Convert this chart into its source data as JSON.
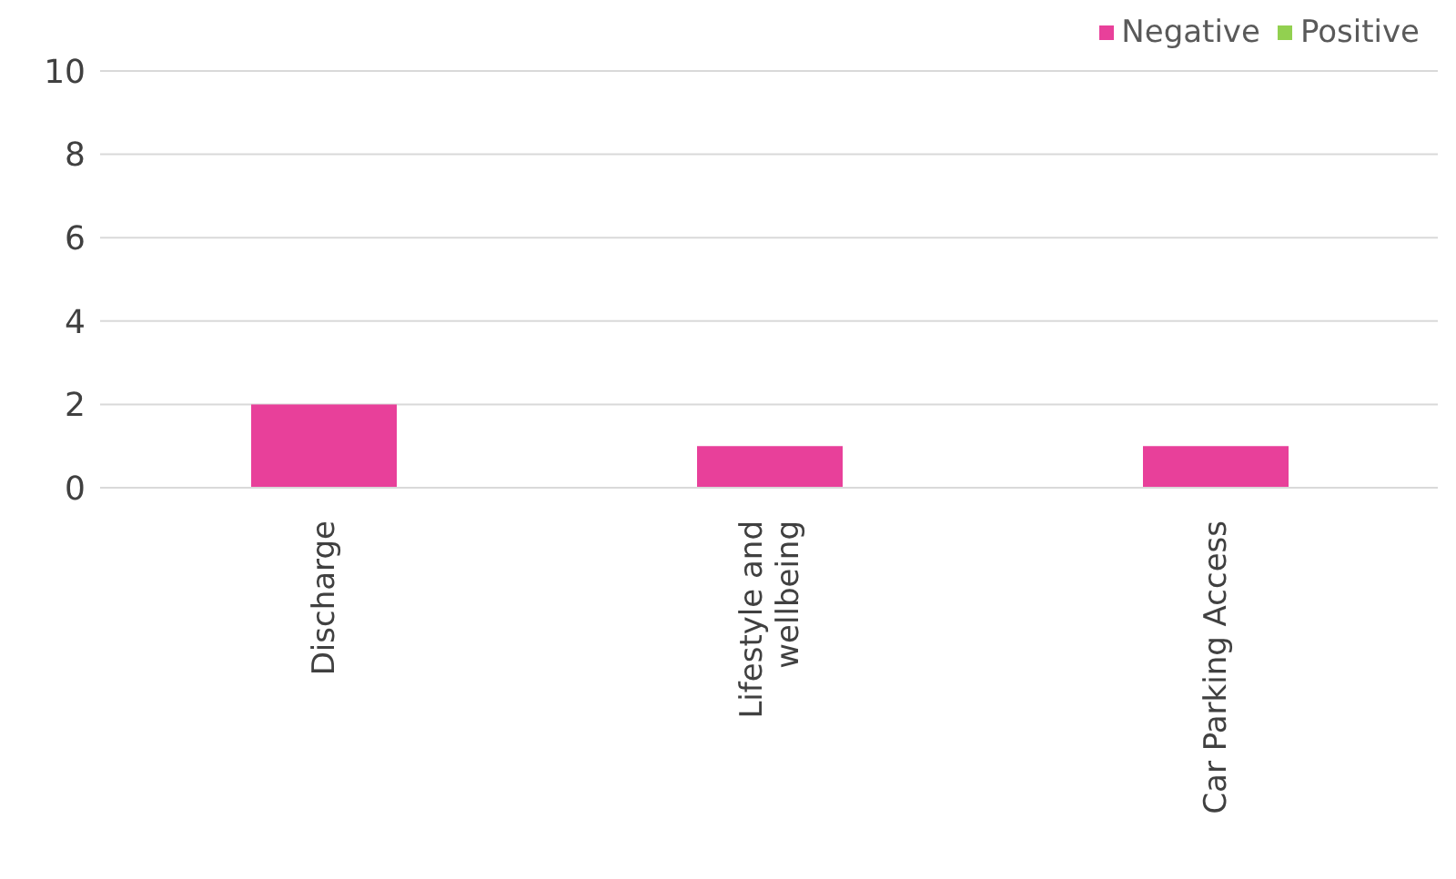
{
  "chart_data": {
    "type": "bar",
    "stacked": true,
    "categories": [
      "Discharge",
      "Lifestyle and wellbeing",
      "Car Parking Access"
    ],
    "series": [
      {
        "name": "Positive",
        "color": "#92d050",
        "values": [
          0,
          0,
          0
        ]
      },
      {
        "name": "Negative",
        "color": "#e8409a",
        "values": [
          2,
          1,
          1
        ]
      }
    ],
    "ylim": [
      0,
      10
    ],
    "yticks": [
      0,
      2,
      4,
      6,
      8,
      10
    ],
    "grid": "y",
    "legend": "top right"
  }
}
